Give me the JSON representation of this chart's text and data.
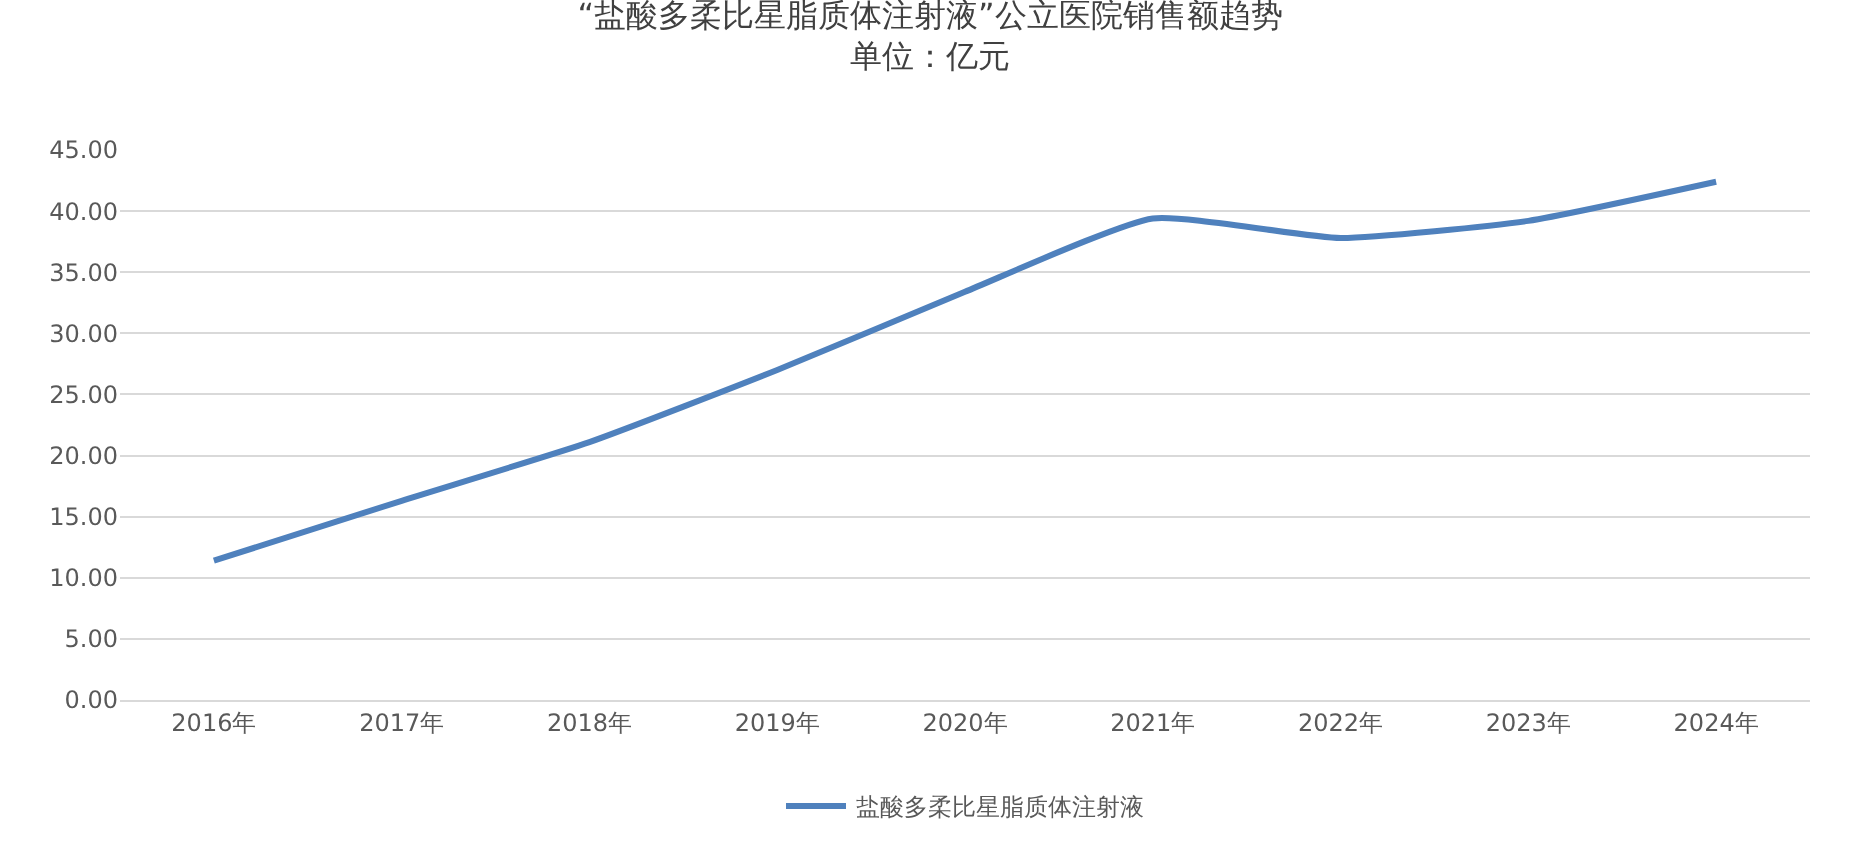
{
  "chart_data": {
    "type": "line",
    "title": "“盐酸多柔比星脂质体注射液”公立医院销售额趋势",
    "subtitle": "单位：亿元",
    "categories": [
      "2016年",
      "2017年",
      "2018年",
      "2019年",
      "2020年",
      "2021年",
      "2022年",
      "2023年",
      "2024年"
    ],
    "series": [
      {
        "name": "盐酸多柔比星脂质体注射液",
        "color": "#4f81bd",
        "values": [
          11.4,
          16.3,
          21.1,
          27.0,
          33.4,
          39.4,
          37.8,
          39.2,
          42.4
        ]
      }
    ],
    "ylim": [
      0,
      45
    ],
    "yticks": [
      {
        "value": 0,
        "label": "0.00"
      },
      {
        "value": 5,
        "label": "5.00"
      },
      {
        "value": 10,
        "label": "10.00"
      },
      {
        "value": 15,
        "label": "15.00"
      },
      {
        "value": 20,
        "label": "20.00"
      },
      {
        "value": 25,
        "label": "25.00"
      },
      {
        "value": 30,
        "label": "30.00"
      },
      {
        "value": 35,
        "label": "35.00"
      },
      {
        "value": 40,
        "label": "40.00"
      },
      {
        "value": 45,
        "label": "45.00"
      }
    ],
    "grid": "y",
    "legend": "bottom",
    "marker": "none",
    "line_style": "solid"
  }
}
